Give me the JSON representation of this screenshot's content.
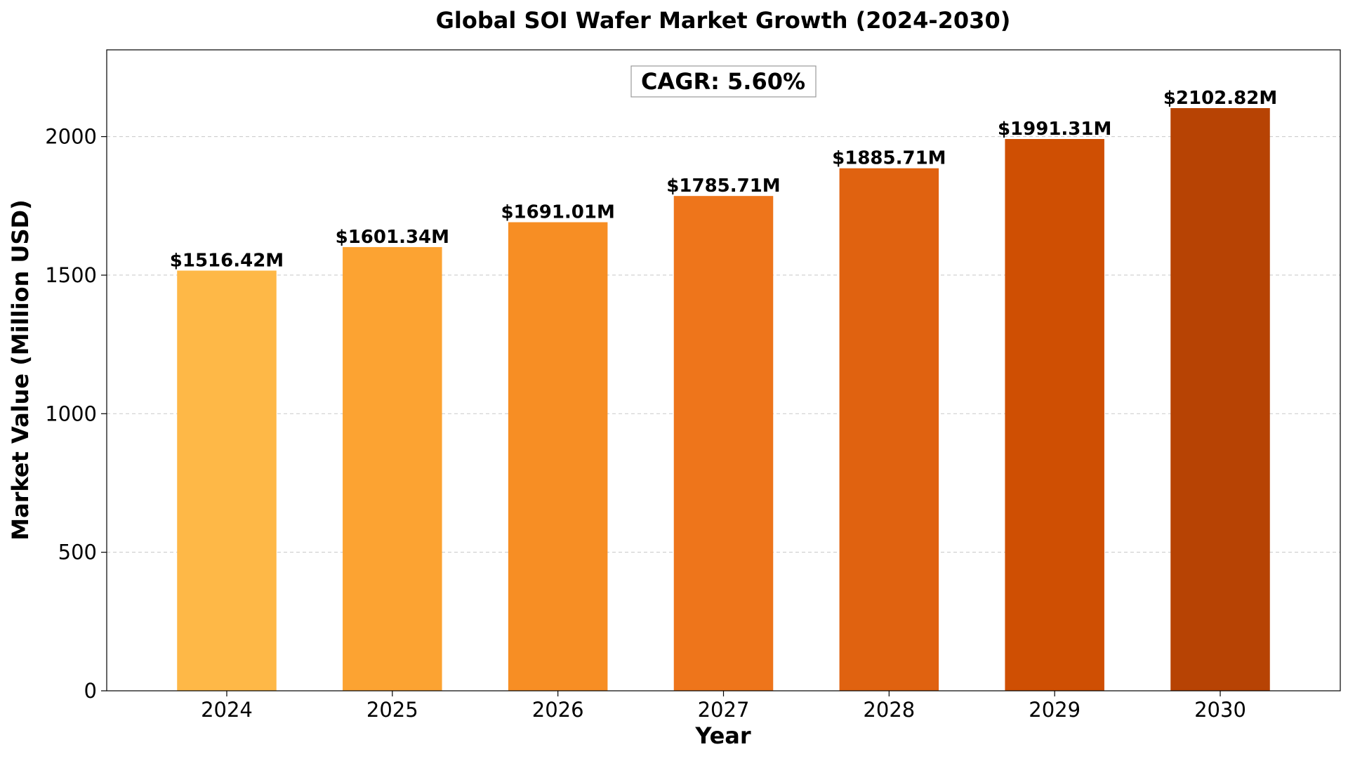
{
  "chart_data": {
    "type": "bar",
    "title": "Global SOI Wafer Market Growth (2024-2030)",
    "xlabel": "Year",
    "ylabel": "Market Value (Million USD)",
    "categories": [
      "2024",
      "2025",
      "2026",
      "2027",
      "2028",
      "2029",
      "2030"
    ],
    "values": [
      1516.42,
      1601.34,
      1691.01,
      1785.71,
      1885.71,
      1991.31,
      2102.82
    ],
    "data_labels": [
      "$1516.42M",
      "$1601.34M",
      "$1691.01M",
      "$1785.71M",
      "$1885.71M",
      "$1991.31M",
      "$2102.82M"
    ],
    "colors": [
      "#FEB847",
      "#FCA332",
      "#F78E24",
      "#EE751B",
      "#E06210",
      "#CF4F03",
      "#B74304"
    ],
    "ylim": [
      0,
      2313.1
    ],
    "yticks": [
      0,
      500,
      1000,
      1500,
      2000
    ],
    "ytick_labels": [
      "0",
      "500",
      "1000",
      "1500",
      "2000"
    ],
    "grid": "y-dashed",
    "annotation": "CAGR: 5.60%"
  }
}
